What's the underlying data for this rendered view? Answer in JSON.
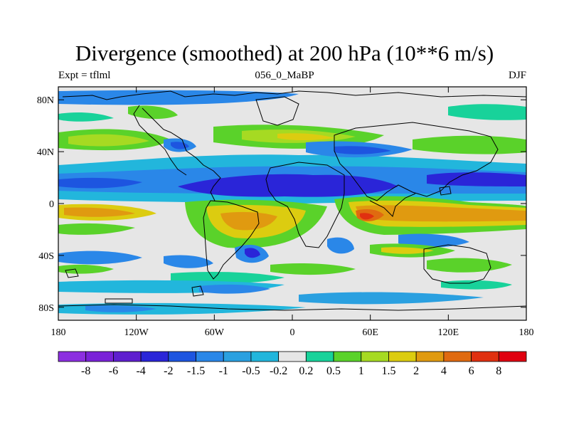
{
  "title": "Divergence (smoothed) at 200 hPa (10**6 m/s)",
  "subtitle_left": "Expt = tflml",
  "subtitle_center": "056_0_MaBP",
  "subtitle_right": "DJF",
  "axes": {
    "lon_ticks": [
      {
        "value": -180,
        "label": "180"
      },
      {
        "value": -120,
        "label": "120W"
      },
      {
        "value": -60,
        "label": "60W"
      },
      {
        "value": 0,
        "label": "0"
      },
      {
        "value": 60,
        "label": "60E"
      },
      {
        "value": 120,
        "label": "120E"
      },
      {
        "value": 180,
        "label": "180"
      }
    ],
    "lat_ticks": [
      {
        "value": 80,
        "label": "80N"
      },
      {
        "value": 40,
        "label": "40N"
      },
      {
        "value": 0,
        "label": "0"
      },
      {
        "value": -40,
        "label": "40S"
      },
      {
        "value": -80,
        "label": "80S"
      }
    ],
    "lon_range": [
      -180,
      180
    ],
    "lat_range": [
      -90,
      90
    ]
  },
  "colorbar": {
    "levels": [
      "-8",
      "-6",
      "-4",
      "-2",
      "-1.5",
      "-1",
      "-0.5",
      "-0.2",
      "0.2",
      "0.5",
      "1",
      "1.5",
      "2",
      "4",
      "6",
      "8"
    ],
    "colors": [
      "#8c2fe0",
      "#7a22d8",
      "#5f1fcf",
      "#2a25d8",
      "#1d55e0",
      "#2a87e8",
      "#2aa0e0",
      "#22b6dc",
      "#e6e6e6",
      "#18d29a",
      "#5ad22a",
      "#a6da22",
      "#dccc10",
      "#e09a10",
      "#e06a10",
      "#e03010",
      "#e00010"
    ]
  }
}
